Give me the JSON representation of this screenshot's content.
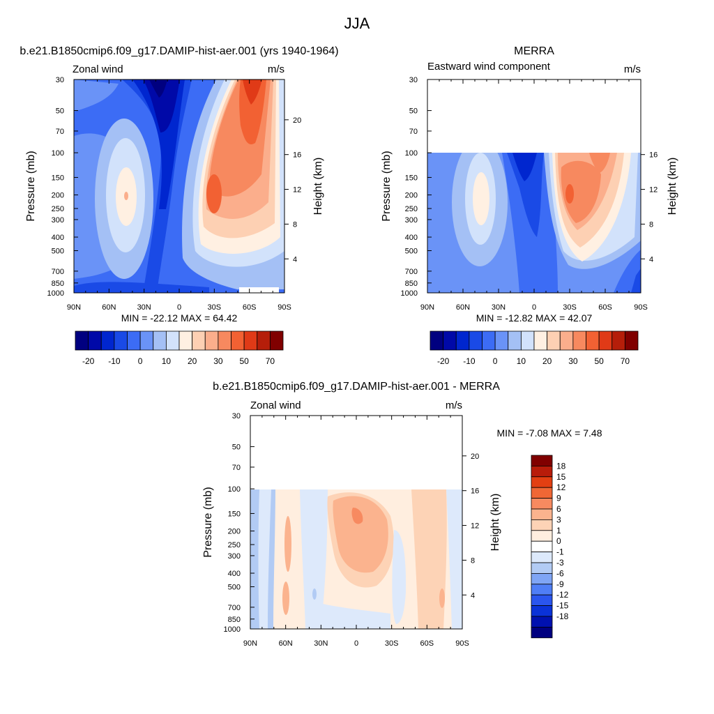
{
  "figure": {
    "title": "JJA"
  },
  "colors": {
    "main": [
      "#000080",
      "#0009a8",
      "#0026cf",
      "#1a4ae6",
      "#3c6cf5",
      "#6a93f7",
      "#a4c0f5",
      "#d2e2fb",
      "#fff0e2",
      "#fdd0b3",
      "#fbae8c",
      "#f7895f",
      "#f26133",
      "#e03a17",
      "#b51e0a",
      "#800000"
    ],
    "diff": [
      "#000080",
      "#0011b0",
      "#0a32d8",
      "#2a55ee",
      "#4f7ef6",
      "#7fa5f5",
      "#b2cbf4",
      "#dde9fb",
      "#ffffff",
      "#ffeedf",
      "#fdd3b6",
      "#fbb38e",
      "#f78a60",
      "#f06735",
      "#e33f12",
      "#b81c0a",
      "#800000"
    ]
  },
  "chart_data": [
    {
      "type": "heatmap",
      "panel_title": "b.e21.B1850cmip6.f09_g17.DAMIP-hist-aer.001 (yrs 1940-1964)",
      "left_label": "Zonal wind",
      "right_label": "m/s",
      "ylabel": "Pressure (mb)",
      "ylabel_right": "Height (km)",
      "x_ticks": [
        "90N",
        "60N",
        "30N",
        "0",
        "30S",
        "60S",
        "90S"
      ],
      "y_ticks": [
        "30",
        "50",
        "70",
        "100",
        "150",
        "200",
        "250",
        "300",
        "400",
        "500",
        "700",
        "850",
        "1000"
      ],
      "height_ticks": [
        "20",
        "16",
        "12",
        "8",
        "4"
      ],
      "stats": "MIN = -22.12  MAX =  64.42",
      "colorbar_labels": [
        "-20",
        "-10",
        "0",
        "10",
        "20",
        "30",
        "50",
        "70"
      ],
      "data_top": 30,
      "min": -22.12,
      "max": 64.42
    },
    {
      "type": "heatmap",
      "panel_title": "MERRA",
      "left_label": "Eastward wind component",
      "right_label": "m/s",
      "ylabel": "Pressure (mb)",
      "ylabel_right": "Height (km)",
      "x_ticks": [
        "90N",
        "60N",
        "30N",
        "0",
        "30S",
        "60S",
        "90S"
      ],
      "y_ticks": [
        "30",
        "50",
        "70",
        "100",
        "150",
        "200",
        "250",
        "300",
        "400",
        "500",
        "700",
        "850",
        "1000"
      ],
      "height_ticks": [
        "16",
        "12",
        "8",
        "4"
      ],
      "stats": "MIN = -12.82  MAX =  42.07",
      "colorbar_labels": [
        "-20",
        "-10",
        "0",
        "10",
        "20",
        "30",
        "50",
        "70"
      ],
      "data_top": 100,
      "min": -12.82,
      "max": 42.07
    },
    {
      "type": "heatmap",
      "panel_title": "b.e21.B1850cmip6.f09_g17.DAMIP-hist-aer.001 - MERRA",
      "left_label": "Zonal wind",
      "right_label": "m/s",
      "ylabel": "Pressure (mb)",
      "ylabel_right": "Height (km)",
      "x_ticks": [
        "90N",
        "60N",
        "30N",
        "0",
        "30S",
        "60S",
        "90S"
      ],
      "y_ticks": [
        "30",
        "50",
        "70",
        "100",
        "150",
        "200",
        "250",
        "300",
        "400",
        "500",
        "700",
        "850",
        "1000"
      ],
      "height_ticks": [
        "20",
        "16",
        "12",
        "8",
        "4"
      ],
      "stats": "MIN =  -7.08  MAX =   7.48",
      "colorbar_labels": [
        "18",
        "15",
        "12",
        "9",
        "6",
        "3",
        "1",
        "0",
        "-1",
        "-3",
        "-6",
        "-9",
        "-12",
        "-15",
        "-18"
      ],
      "data_top": 100,
      "min": -7.08,
      "max": 7.48
    }
  ]
}
